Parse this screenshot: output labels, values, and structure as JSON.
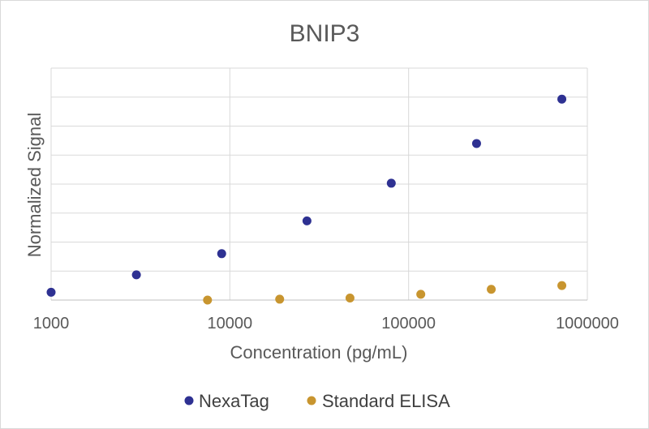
{
  "chart_data": {
    "type": "scatter",
    "title": "BNIP3",
    "xlabel": "Concentration (pg/mL)",
    "ylabel": "Normalized Signal",
    "x_scale": "log",
    "xlim": [
      1000,
      1000000
    ],
    "ylim": [
      0,
      8
    ],
    "x_tick_labels": [
      "1000",
      "10000",
      "100000",
      "1000000"
    ],
    "y_tick_labels_visible": false,
    "grid": true,
    "legend_position": "bottom",
    "series": [
      {
        "name": "NexaTag",
        "color": "#2E3192",
        "points": [
          {
            "x": 1000,
            "y": 0.27
          },
          {
            "x": 3000,
            "y": 0.87
          },
          {
            "x": 9000,
            "y": 1.6
          },
          {
            "x": 27000,
            "y": 2.73
          },
          {
            "x": 80000,
            "y": 4.03
          },
          {
            "x": 240000,
            "y": 5.4
          },
          {
            "x": 720000,
            "y": 6.93
          }
        ]
      },
      {
        "name": "Standard ELISA",
        "color": "#C8952F",
        "points": [
          {
            "x": 7500,
            "y": 0.0
          },
          {
            "x": 19000,
            "y": 0.03
          },
          {
            "x": 47000,
            "y": 0.07
          },
          {
            "x": 117000,
            "y": 0.2
          },
          {
            "x": 290000,
            "y": 0.37
          },
          {
            "x": 720000,
            "y": 0.5
          }
        ]
      }
    ]
  }
}
